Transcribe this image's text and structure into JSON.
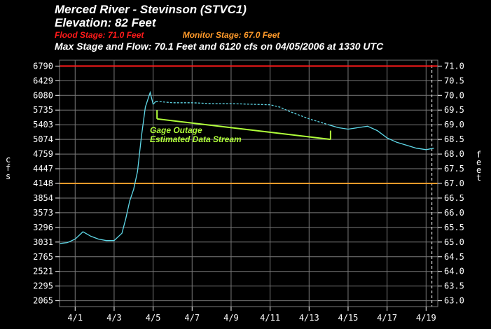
{
  "header": {
    "line1": "Merced River - Stevinson (STVC1)",
    "line2": "Elevation: 82 Feet",
    "flood": "Flood Stage: 71.0 Feet",
    "monitor": "Monitor Stage: 67.0 Feet",
    "line4": "Max Stage and Flow: 70.1 Feet and 6120 cfs on 04/05/2006 at 1330 UTC"
  },
  "colors": {
    "background": "#000000",
    "grid": "#7a7a7a",
    "flood": "#ff1a1a",
    "monitor": "#ff9a2a",
    "series": "#5fd8e8",
    "annotation": "#b0ff3a"
  },
  "chart_data": {
    "type": "line",
    "xlabel": "",
    "ylabel_left": "cfs",
    "ylabel_right": "feet",
    "x_ticks": [
      "4/1",
      "4/3",
      "4/5",
      "4/7",
      "4/9",
      "4/11",
      "4/13",
      "4/15",
      "4/17",
      "4/19"
    ],
    "xlim": [
      0.2,
      19.6
    ],
    "ylim": [
      62.8,
      71.2
    ],
    "y_left_ticks": [
      {
        "label": "6790",
        "stage": 71.0
      },
      {
        "label": "6429",
        "stage": 70.5
      },
      {
        "label": "6080",
        "stage": 70.0
      },
      {
        "label": "5735",
        "stage": 69.5
      },
      {
        "label": "5403",
        "stage": 69.0
      },
      {
        "label": "5074",
        "stage": 68.5
      },
      {
        "label": "4759",
        "stage": 68.0
      },
      {
        "label": "4447",
        "stage": 67.5
      },
      {
        "label": "4148",
        "stage": 67.0
      },
      {
        "label": "3854",
        "stage": 66.5
      },
      {
        "label": "3573",
        "stage": 66.0
      },
      {
        "label": "3296",
        "stage": 65.5
      },
      {
        "label": "3031",
        "stage": 65.0
      },
      {
        "label": "2765",
        "stage": 64.5
      },
      {
        "label": "2521",
        "stage": 64.0
      },
      {
        "label": "2295",
        "stage": 63.5
      },
      {
        "label": "2065",
        "stage": 63.0
      }
    ],
    "y_right_ticks": [
      "71.0",
      "70.5",
      "70.0",
      "69.5",
      "69.0",
      "68.5",
      "68.0",
      "67.5",
      "67.0",
      "66.5",
      "66.0",
      "65.5",
      "65.0",
      "64.5",
      "64.0",
      "63.5",
      "63.0"
    ],
    "flood_stage": 71.0,
    "monitor_stage": 67.0,
    "grid": true,
    "series": [
      {
        "style": "solid",
        "x": [
          0.2,
          0.6,
          1.0,
          1.4,
          1.8,
          2.2,
          2.6,
          3.0,
          3.4,
          3.6,
          3.8,
          4.0,
          4.2,
          4.4,
          4.6,
          4.75,
          4.85,
          5.0,
          5.15
        ],
        "y": [
          64.95,
          64.98,
          65.1,
          65.35,
          65.2,
          65.1,
          65.05,
          65.05,
          65.3,
          65.8,
          66.4,
          66.8,
          67.4,
          68.6,
          69.6,
          69.9,
          70.1,
          69.7,
          69.8
        ]
      },
      {
        "style": "dashed",
        "x": [
          5.15,
          6.0,
          7.0,
          8.0,
          9.0,
          10.0,
          11.0,
          11.5,
          12.0,
          13.0,
          14.0
        ],
        "y": [
          69.8,
          69.75,
          69.75,
          69.72,
          69.72,
          69.7,
          69.68,
          69.6,
          69.45,
          69.2,
          69.0
        ]
      },
      {
        "style": "solid",
        "x": [
          14.0,
          14.5,
          15.0,
          15.5,
          16.0,
          16.5,
          17.0,
          17.5,
          18.0,
          18.5,
          19.0,
          19.4
        ],
        "y": [
          69.0,
          68.9,
          68.85,
          68.9,
          68.95,
          68.8,
          68.55,
          68.4,
          68.3,
          68.2,
          68.15,
          68.2
        ]
      }
    ],
    "forecast_marker_x": 19.3,
    "annotation": {
      "line1": "Gage Outage",
      "line2": "Estimated Data Stream",
      "bracket": {
        "x": [
          5.2,
          14.1
        ],
        "y": [
          69.2,
          68.5
        ],
        "tick_height": 0.3
      }
    }
  }
}
